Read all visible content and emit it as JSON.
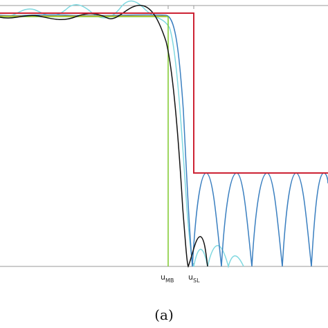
{
  "labels": [
    {
      "main": "u",
      "sub": "MB"
    },
    {
      "main": "u",
      "sub": "SL"
    }
  ],
  "caption": "(a)"
}
